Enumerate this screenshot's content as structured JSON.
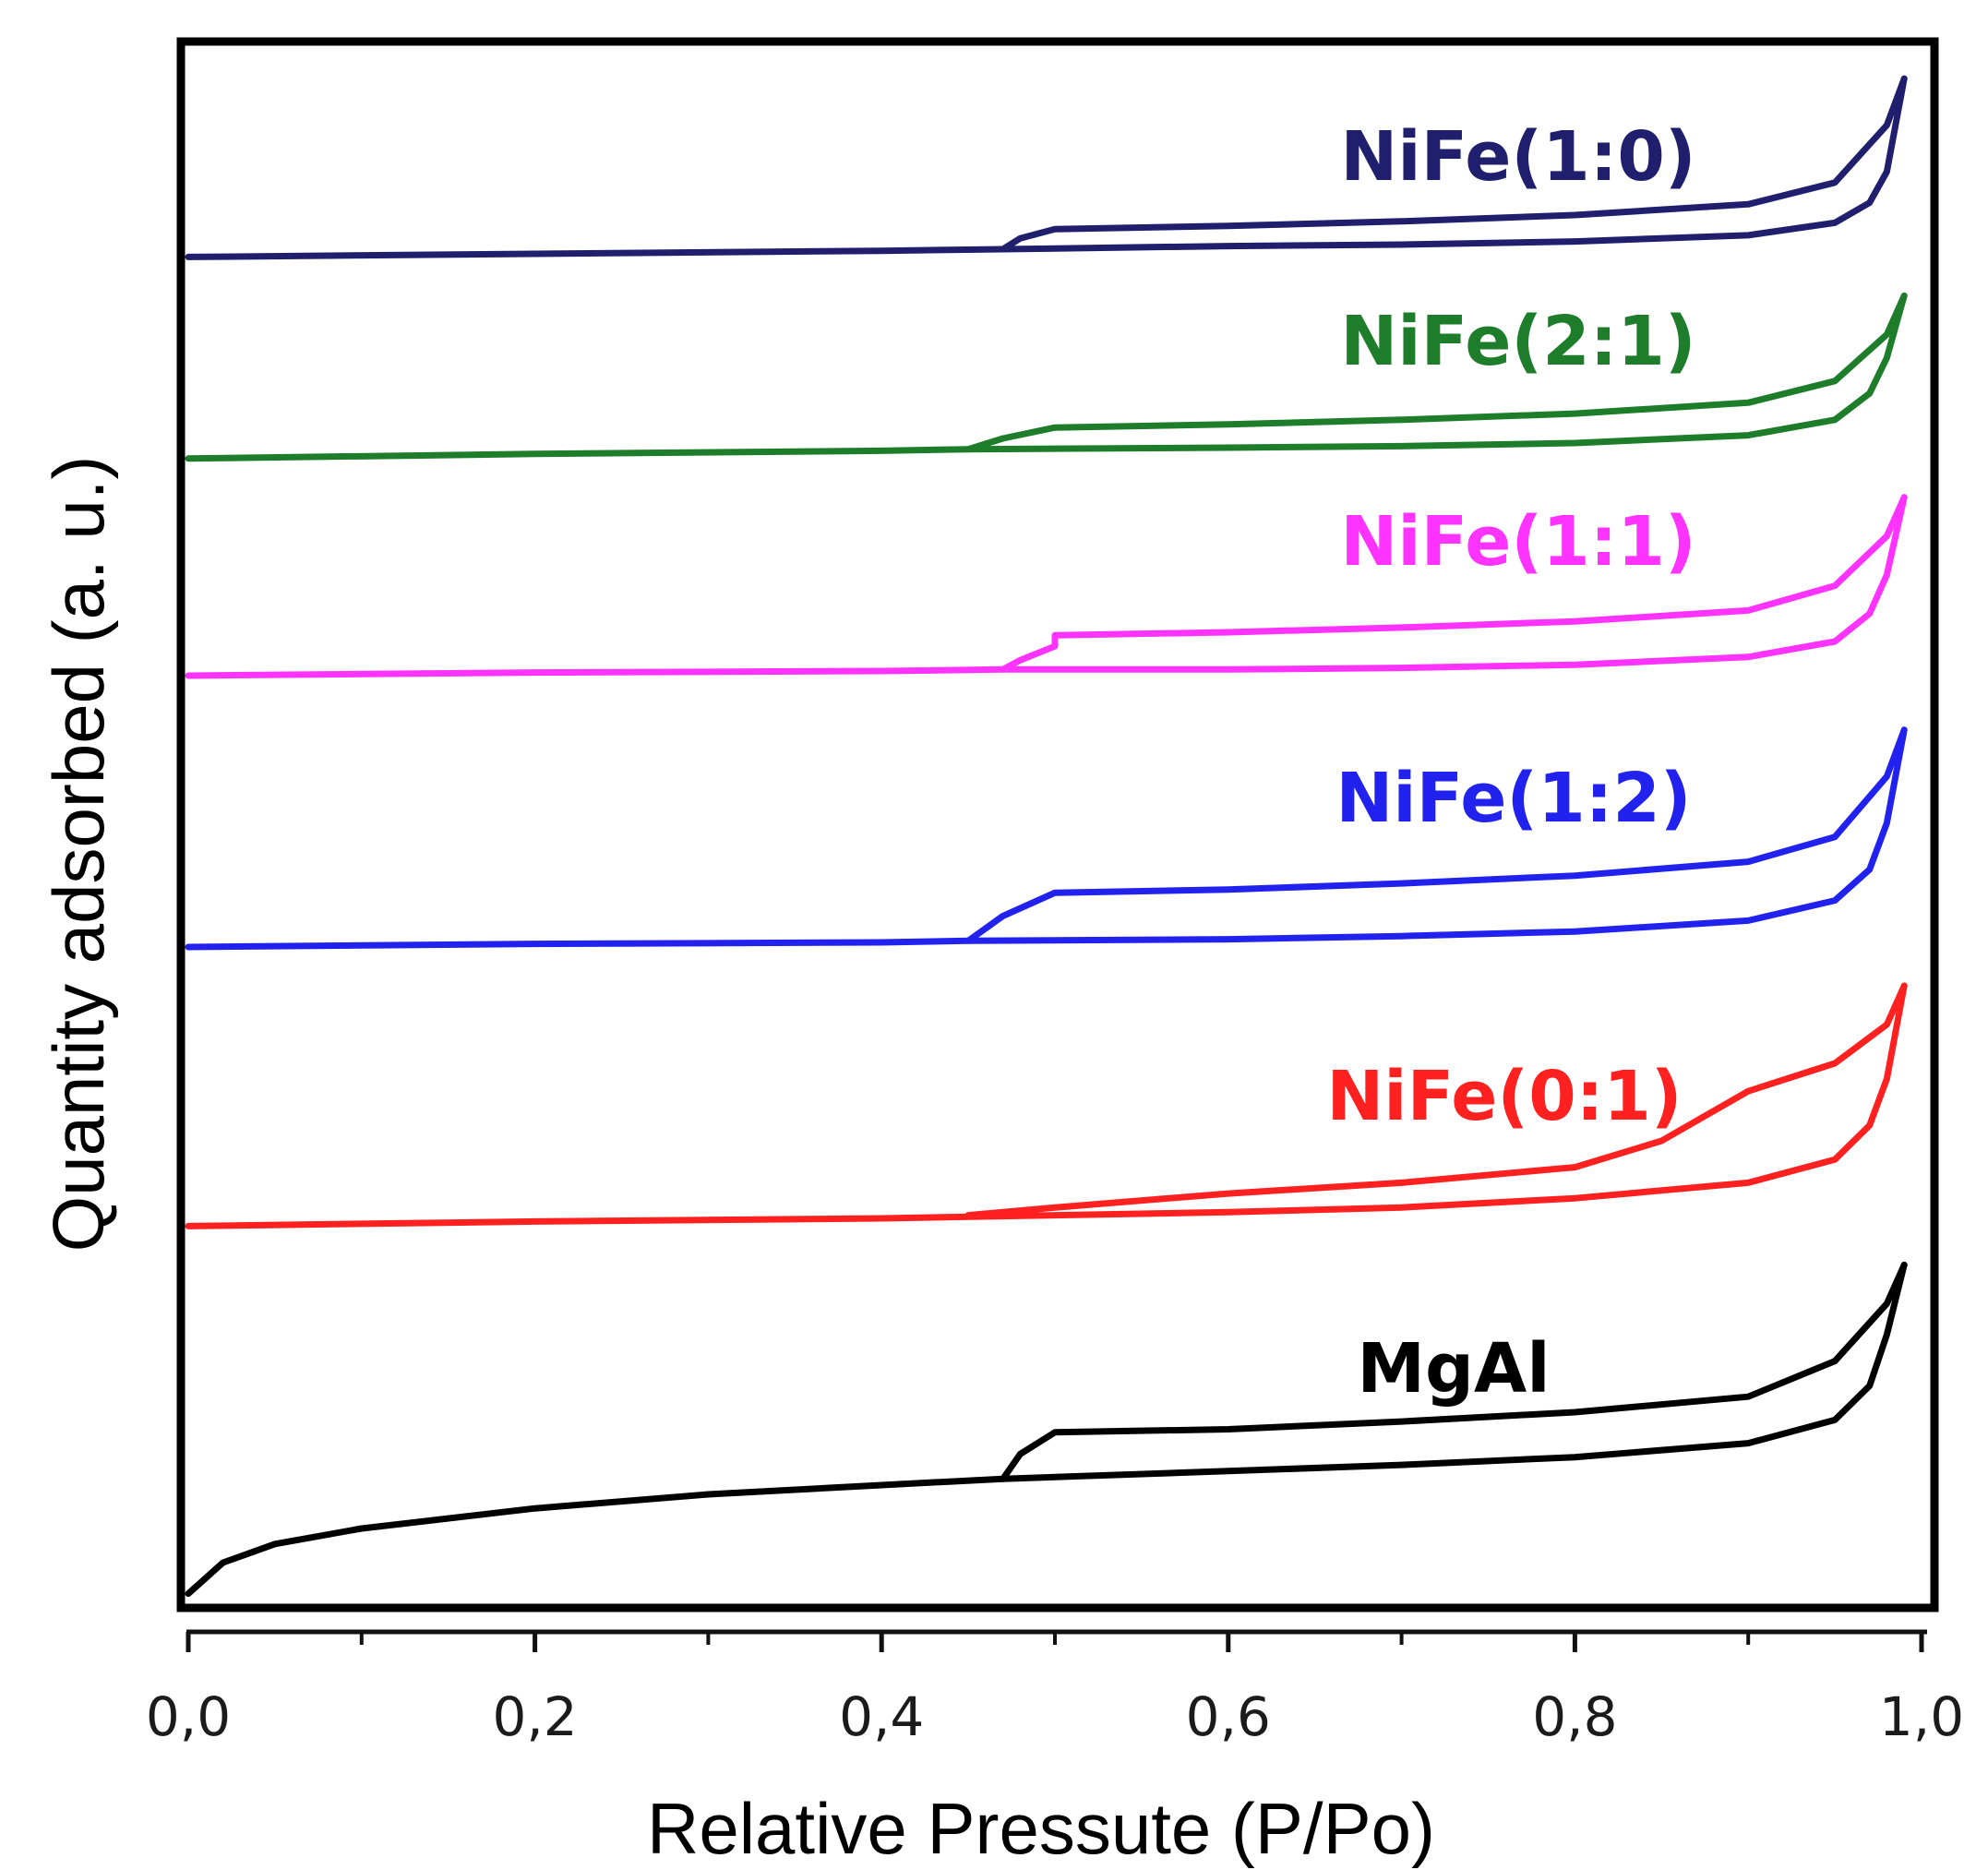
{
  "chart_data": {
    "type": "line",
    "title": "",
    "xlabel": "Relative Pressute (P/Po)",
    "ylabel": "Quantity adsorbed (a. u.)",
    "xlim": [
      0.0,
      1.0
    ],
    "ylim": [
      0,
      100
    ],
    "x_ticks": [
      0.0,
      0.2,
      0.4,
      0.6,
      0.8,
      1.0
    ],
    "x_tick_labels": [
      "0,0",
      "0,2",
      "0,4",
      "0,6",
      "0,8",
      "1,0"
    ],
    "y_ticks_shown": false,
    "note": "y values in arbitrary units (a. u.), curves offset vertically",
    "series": [
      {
        "name": "NiFe(1:0)",
        "color": "#1f1f6e",
        "adsorption": [
          [
            0.0,
            87.0
          ],
          [
            0.2,
            87.2
          ],
          [
            0.4,
            87.4
          ],
          [
            0.47,
            87.5
          ],
          [
            0.6,
            87.7
          ],
          [
            0.7,
            87.8
          ],
          [
            0.8,
            88.0
          ],
          [
            0.9,
            88.4
          ],
          [
            0.95,
            89.2
          ],
          [
            0.97,
            90.5
          ],
          [
            0.98,
            92.5
          ],
          [
            0.99,
            98.5
          ]
        ],
        "desorption": [
          [
            0.99,
            98.5
          ],
          [
            0.98,
            95.5
          ],
          [
            0.95,
            91.8
          ],
          [
            0.9,
            90.4
          ],
          [
            0.8,
            89.7
          ],
          [
            0.7,
            89.3
          ],
          [
            0.6,
            89.0
          ],
          [
            0.5,
            88.8
          ],
          [
            0.48,
            88.2
          ],
          [
            0.47,
            87.5
          ]
        ]
      },
      {
        "name": "NiFe(2:1)",
        "color": "#1e7d2a",
        "adsorption": [
          [
            0.0,
            74.0
          ],
          [
            0.2,
            74.3
          ],
          [
            0.4,
            74.5
          ],
          [
            0.45,
            74.6
          ],
          [
            0.6,
            74.7
          ],
          [
            0.7,
            74.8
          ],
          [
            0.8,
            75.0
          ],
          [
            0.9,
            75.5
          ],
          [
            0.95,
            76.5
          ],
          [
            0.97,
            78.2
          ],
          [
            0.98,
            80.5
          ],
          [
            0.99,
            84.5
          ]
        ],
        "desorption": [
          [
            0.99,
            84.5
          ],
          [
            0.98,
            82.0
          ],
          [
            0.95,
            79.0
          ],
          [
            0.9,
            77.6
          ],
          [
            0.8,
            76.9
          ],
          [
            0.7,
            76.5
          ],
          [
            0.6,
            76.2
          ],
          [
            0.5,
            76.0
          ],
          [
            0.47,
            75.3
          ],
          [
            0.45,
            74.6
          ]
        ]
      },
      {
        "name": "NiFe(1:1)",
        "color": "#ff33ff",
        "adsorption": [
          [
            0.0,
            60.0
          ],
          [
            0.2,
            60.2
          ],
          [
            0.4,
            60.3
          ],
          [
            0.47,
            60.4
          ],
          [
            0.6,
            60.4
          ],
          [
            0.7,
            60.5
          ],
          [
            0.8,
            60.7
          ],
          [
            0.9,
            61.2
          ],
          [
            0.95,
            62.2
          ],
          [
            0.97,
            64.0
          ],
          [
            0.98,
            66.5
          ],
          [
            0.99,
            71.5
          ]
        ],
        "desorption": [
          [
            0.99,
            71.5
          ],
          [
            0.98,
            69.0
          ],
          [
            0.95,
            65.8
          ],
          [
            0.9,
            64.2
          ],
          [
            0.8,
            63.5
          ],
          [
            0.7,
            63.1
          ],
          [
            0.6,
            62.8
          ],
          [
            0.5,
            62.6
          ],
          [
            0.5,
            61.9
          ],
          [
            0.48,
            61.0
          ],
          [
            0.47,
            60.4
          ]
        ]
      },
      {
        "name": "NiFe(1:2)",
        "color": "#2222ee",
        "adsorption": [
          [
            0.0,
            42.5
          ],
          [
            0.2,
            42.7
          ],
          [
            0.4,
            42.8
          ],
          [
            0.45,
            42.9
          ],
          [
            0.6,
            43.0
          ],
          [
            0.7,
            43.2
          ],
          [
            0.8,
            43.5
          ],
          [
            0.9,
            44.2
          ],
          [
            0.95,
            45.5
          ],
          [
            0.97,
            47.5
          ],
          [
            0.98,
            50.5
          ],
          [
            0.99,
            56.5
          ]
        ],
        "desorption": [
          [
            0.99,
            56.5
          ],
          [
            0.98,
            53.5
          ],
          [
            0.95,
            49.6
          ],
          [
            0.9,
            48.0
          ],
          [
            0.8,
            47.1
          ],
          [
            0.7,
            46.6
          ],
          [
            0.6,
            46.2
          ],
          [
            0.5,
            46.0
          ],
          [
            0.47,
            44.5
          ],
          [
            0.45,
            42.9
          ]
        ]
      },
      {
        "name": "NiFe(0:1)",
        "color": "#ff2020",
        "adsorption": [
          [
            0.0,
            24.5
          ],
          [
            0.2,
            24.8
          ],
          [
            0.4,
            25.0
          ],
          [
            0.5,
            25.2
          ],
          [
            0.6,
            25.4
          ],
          [
            0.7,
            25.7
          ],
          [
            0.8,
            26.3
          ],
          [
            0.9,
            27.3
          ],
          [
            0.95,
            28.8
          ],
          [
            0.97,
            31.0
          ],
          [
            0.98,
            34.0
          ],
          [
            0.99,
            40.0
          ]
        ],
        "desorption": [
          [
            0.99,
            40.0
          ],
          [
            0.98,
            37.5
          ],
          [
            0.95,
            35.0
          ],
          [
            0.9,
            33.2
          ],
          [
            0.85,
            30.0
          ],
          [
            0.8,
            28.3
          ],
          [
            0.7,
            27.3
          ],
          [
            0.6,
            26.6
          ],
          [
            0.5,
            25.7
          ],
          [
            0.45,
            25.2
          ]
        ]
      },
      {
        "name": "MgAl",
        "color": "#000000",
        "adsorption": [
          [
            0.0,
            0.8
          ],
          [
            0.02,
            2.8
          ],
          [
            0.05,
            4.0
          ],
          [
            0.1,
            5.0
          ],
          [
            0.2,
            6.3
          ],
          [
            0.3,
            7.2
          ],
          [
            0.4,
            7.8
          ],
          [
            0.47,
            8.2
          ],
          [
            0.6,
            8.7
          ],
          [
            0.7,
            9.1
          ],
          [
            0.8,
            9.6
          ],
          [
            0.9,
            10.5
          ],
          [
            0.95,
            12.0
          ],
          [
            0.97,
            14.2
          ],
          [
            0.98,
            17.5
          ],
          [
            0.99,
            22.0
          ]
        ],
        "desorption": [
          [
            0.99,
            22.0
          ],
          [
            0.98,
            19.5
          ],
          [
            0.95,
            15.8
          ],
          [
            0.9,
            13.5
          ],
          [
            0.8,
            12.5
          ],
          [
            0.7,
            11.9
          ],
          [
            0.6,
            11.4
          ],
          [
            0.5,
            11.2
          ],
          [
            0.48,
            9.8
          ],
          [
            0.47,
            8.2
          ]
        ]
      }
    ]
  }
}
